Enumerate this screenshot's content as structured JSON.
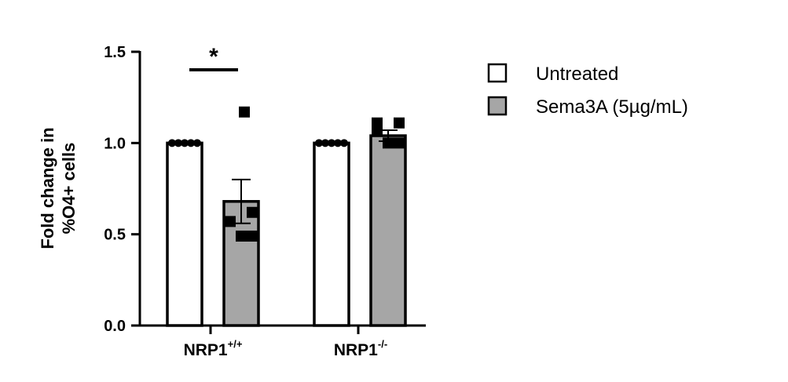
{
  "chart_data": {
    "type": "bar",
    "ylabel_lines": [
      "Fold change in",
      "%O4+ cells"
    ],
    "ylim": [
      0,
      1.5
    ],
    "yticks": [
      {
        "value": 0.0,
        "label": "0.0"
      },
      {
        "value": 0.5,
        "label": "0.5"
      },
      {
        "value": 1.0,
        "label": "1.0"
      },
      {
        "value": 1.5,
        "label": "1.5"
      }
    ],
    "groups": [
      {
        "base": "NRP1",
        "sup": "+/+"
      },
      {
        "base": "NRP1",
        "sup": "-/-"
      }
    ],
    "series": [
      {
        "name": "Untreated",
        "color": "#ffffff",
        "marker": "circle",
        "values": [
          1.0,
          1.0
        ],
        "errors": [
          0,
          0
        ],
        "points": [
          [
            1.0,
            1.0,
            1.0,
            1.0,
            1.0
          ],
          [
            1.0,
            1.0,
            1.0,
            1.0,
            1.0
          ]
        ]
      },
      {
        "name": "Sema3A (5µg/mL)",
        "color": "#a6a6a6",
        "marker": "square",
        "values": [
          0.68,
          1.04
        ],
        "errors": [
          0.12,
          0.03
        ],
        "points": [
          [
            1.17,
            0.62,
            0.57,
            0.49,
            0.49
          ],
          [
            1.11,
            1.11,
            1.07,
            1.0,
            1.0
          ]
        ]
      }
    ],
    "annotations": [
      {
        "text": "*",
        "group": 0
      }
    ],
    "legend_position": "right"
  }
}
